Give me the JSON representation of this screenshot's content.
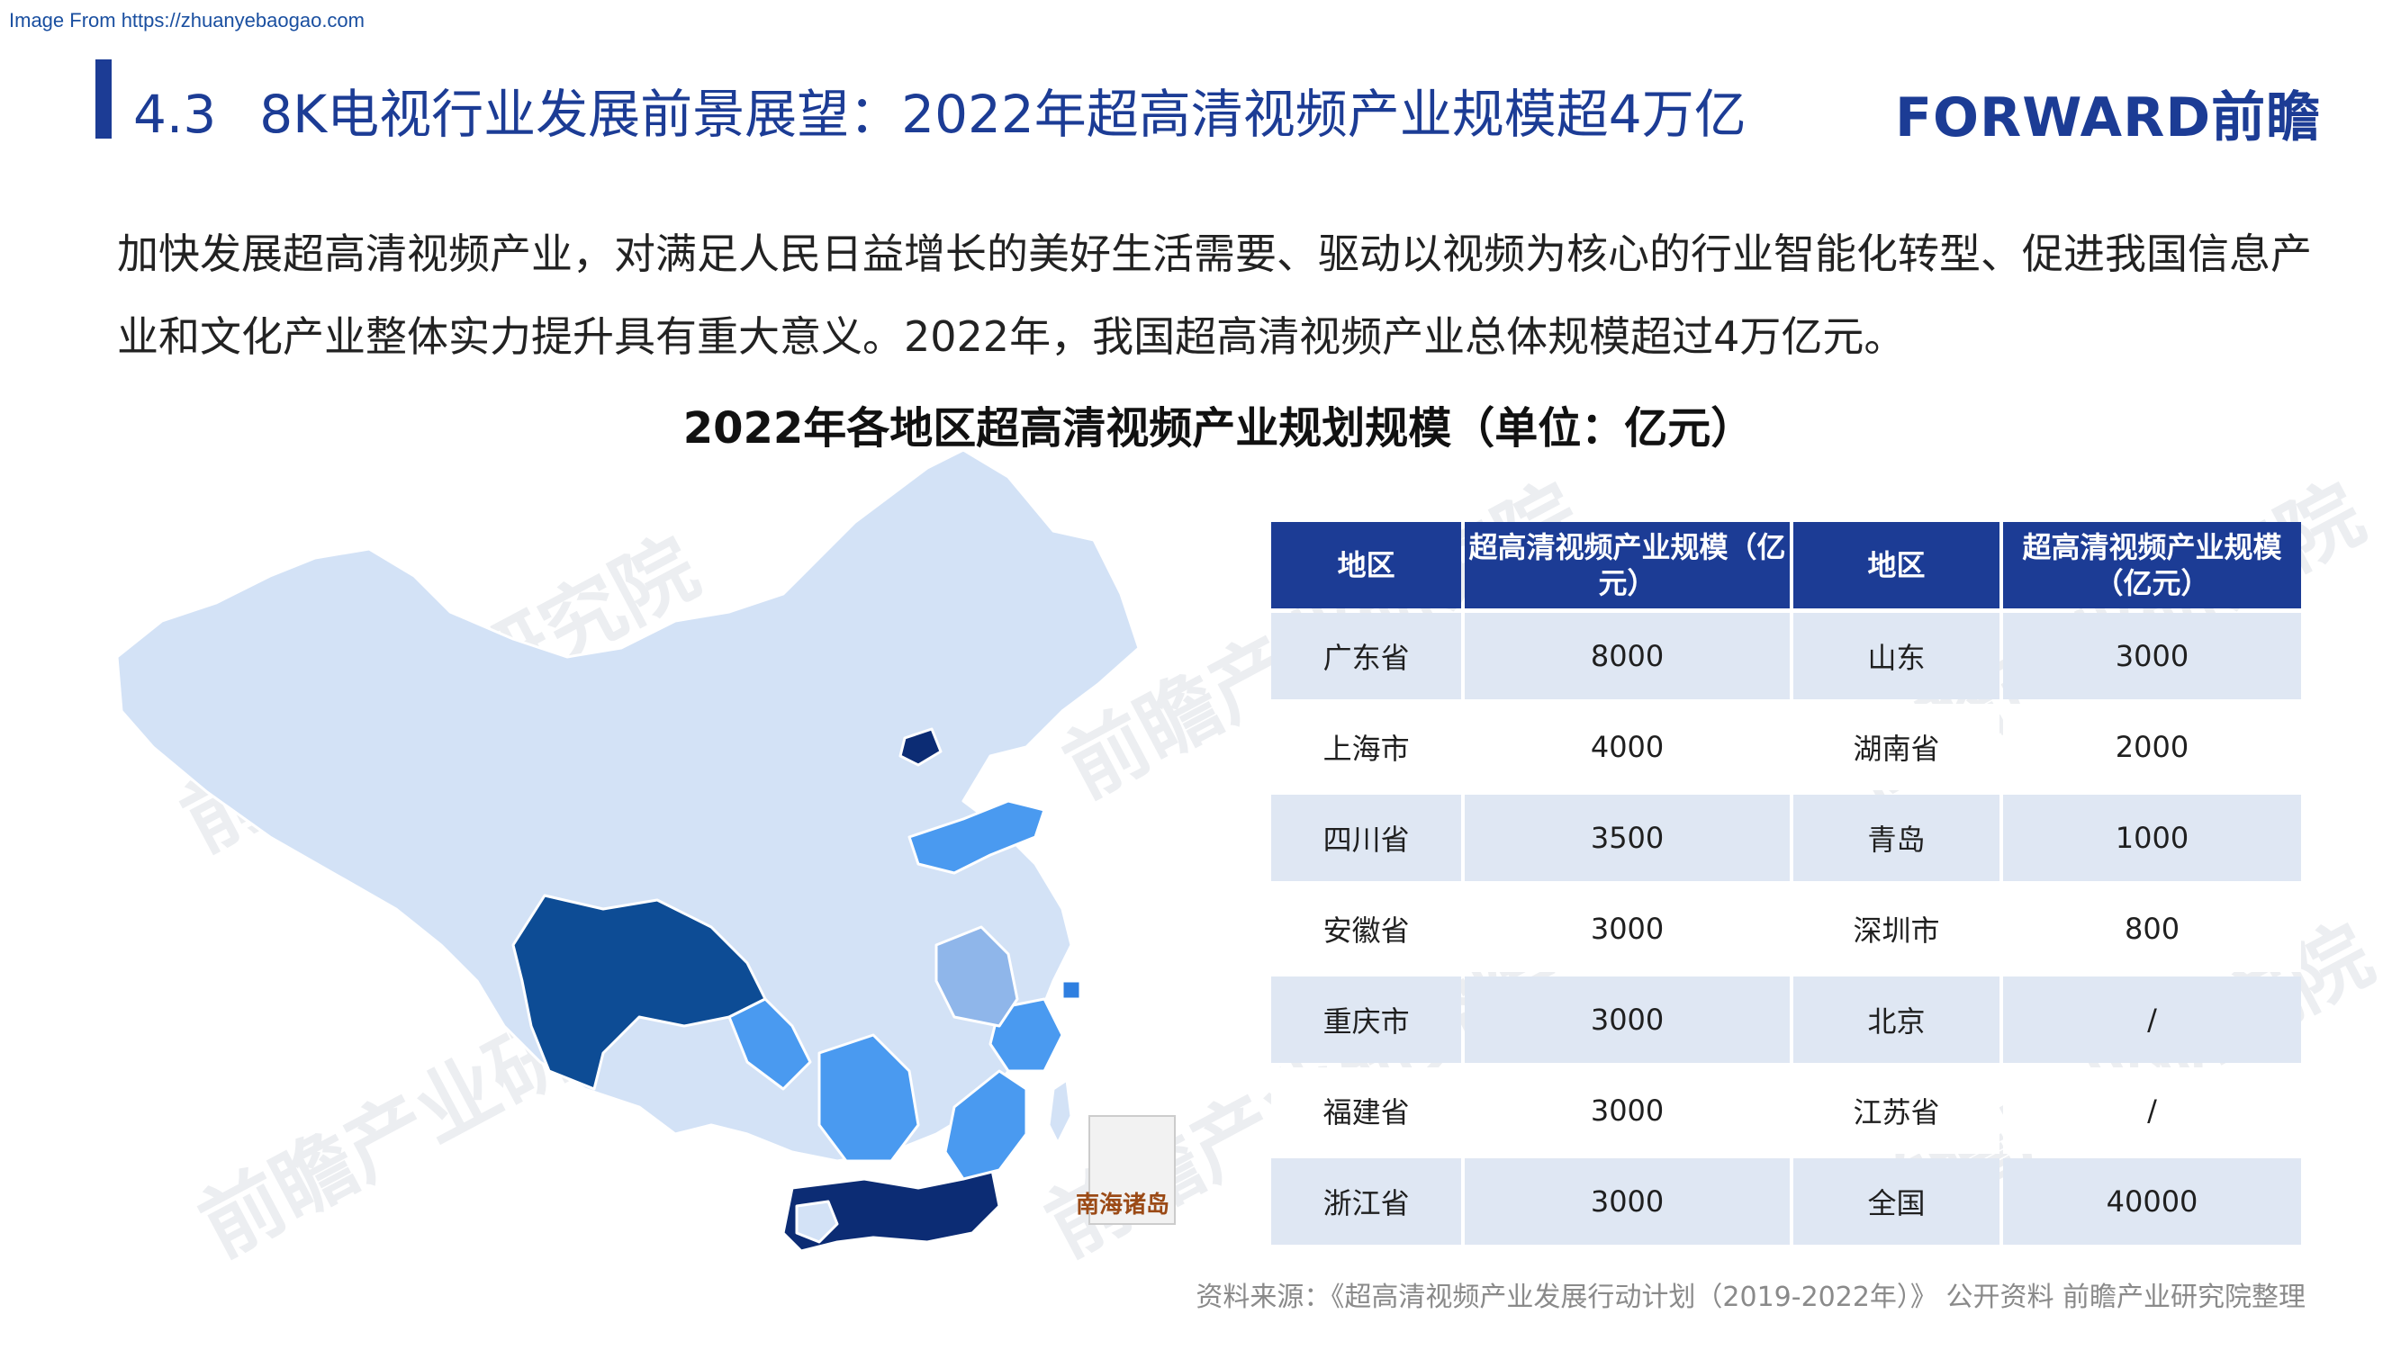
{
  "header": {
    "source_link": "Image From https://zhuanyebaogao.com",
    "section_number": "4.3",
    "title": "8K电视行业发展前景展望：2022年超高清视频产业规模超4万亿",
    "logo_text": "FORWARD前瞻"
  },
  "intro": {
    "paragraph": "加快发展超高清视频产业，对满足人民日益增长的美好生活需要、驱动以视频为核心的行业智能化转型、促进我国信息产业和文化产业整体实力提升具有重大意义。2022年，我国超高清视频产业总体规模超过4万亿元。"
  },
  "figure": {
    "title": "2022年各地区超高清视频产业规划规模（单位：亿元）",
    "map_inset_label": "南海诸岛",
    "watermark": "前瞻产业研究院",
    "colors": {
      "header": "#1c3c95",
      "base": "#d3e2f6",
      "light": "#8fb6ea",
      "mid": "#4a9af0",
      "dark": "#0d4c95",
      "darkest": "#0c2c74"
    }
  },
  "table": {
    "headers": [
      "地区",
      "超高清视频产业规模（亿元）",
      "地区",
      "超高清视频产业规模（亿元）"
    ],
    "rows": [
      [
        "广东省",
        "8000",
        "山东",
        "3000"
      ],
      [
        "上海市",
        "4000",
        "湖南省",
        "2000"
      ],
      [
        "四川省",
        "3500",
        "青岛",
        "1000"
      ],
      [
        "安徽省",
        "3000",
        "深圳市",
        "800"
      ],
      [
        "重庆市",
        "3000",
        "北京",
        "/"
      ],
      [
        "福建省",
        "3000",
        "江苏省",
        "/"
      ],
      [
        "浙江省",
        "3000",
        "全国",
        "40000"
      ]
    ]
  },
  "footer": {
    "source": "资料来源：《超高清视频产业发展行动计划（2019-2022年）》 公开资料 前瞻产业研究院整理"
  }
}
